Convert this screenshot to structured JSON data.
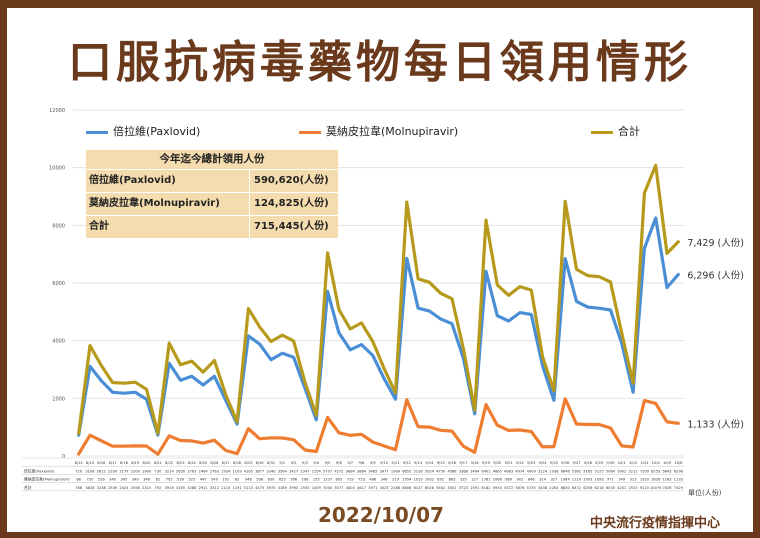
{
  "title": "口服抗病毒藥物每日領用情形",
  "date": "2022/10/07",
  "agency": "中央流行疫情指揮中心",
  "unit_note": "單位(人份)",
  "colors": {
    "frame": "#6b3a1c",
    "paxlovid": "#4a8fd6",
    "molnupiravir": "#ee7d31",
    "total": "#b79a1c",
    "summary_bg": "#f4dcae"
  },
  "summary": {
    "header": "今年迄今總計領用人份",
    "rows": [
      {
        "label": "倍拉維(Paxlovid)",
        "value": "590,620(人份)"
      },
      {
        "label": "莫納皮拉韋(Molnupiravir)",
        "value": "124,825(人份)"
      },
      {
        "label": "合計",
        "value": "715,445(人份)"
      }
    ]
  },
  "end_labels": {
    "total": "7,429 (人份)",
    "paxlovid": "6,296 (人份)",
    "molnupiravir": "1,133 (人份)"
  },
  "table_row_labels": [
    "倍拉維(Paxlovid)",
    "莫納皮拉韋(Molnupiravir)",
    "合計"
  ],
  "chart_data": {
    "type": "line",
    "title": "口服抗病毒藥物每日領用情形",
    "xlabel": "",
    "ylabel": "",
    "ylim": [
      0,
      12000
    ],
    "yticks": [
      "12000",
      "10000",
      "8000",
      "6000",
      "4000",
      "2000",
      "0"
    ],
    "grid": true,
    "legend_position": "top-left",
    "categories": [
      "8/14",
      "8/15",
      "8/16",
      "8/17",
      "8/18",
      "8/19",
      "8/20",
      "8/21",
      "8/22",
      "8/23",
      "8/24",
      "8/25",
      "8/26",
      "8/27",
      "8/28",
      "8/29",
      "8/30",
      "8/31",
      "9/1",
      "9/2",
      "9/3",
      "9/4",
      "9/5",
      "9/6",
      "9/7",
      "9/8",
      "9/9",
      "9/10",
      "9/11",
      "9/12",
      "9/13",
      "9/14",
      "9/15",
      "9/16",
      "9/17",
      "9/18",
      "9/19",
      "9/20",
      "9/21",
      "9/22",
      "9/23",
      "9/24",
      "9/25",
      "9/26",
      "9/27",
      "9/28",
      "9/29",
      "9/30",
      "10/1",
      "10/2",
      "10/3",
      "10/4",
      "10/5",
      "10/6"
    ],
    "series": [
      {
        "name": "倍拉維(Paxlovid)",
        "values": [
          720,
          3108,
          2612,
          2209,
          2179,
          2209,
          1969,
          730,
          3214,
          2626,
          2763,
          2464,
          2763,
          1924,
          1109,
          4165,
          3877,
          3340,
          3564,
          3427,
          2347,
          1254,
          5707,
          4272,
          3684,
          3864,
          3485,
          2677,
          1969,
          6852,
          5128,
          5024,
          4750,
          4588,
          3388,
          1464,
          6401,
          4865,
          4683,
          4974,
          4909,
          3124,
          1936,
          6846,
          5362,
          5165,
          5125,
          5064,
          3902,
          2212,
          7200,
          8253,
          5843,
          6296
        ]
      },
      {
        "name": "莫納皮拉韋(Molnupiravir)",
        "values": [
          68,
          720,
          526,
          340,
          345,
          349,
          346,
          62,
          702,
          539,
          525,
          447,
          549,
          191,
          82,
          948,
          598,
          630,
          625,
          566,
          208,
          155,
          1337,
          805,
          719,
          753,
          486,
          348,
          219,
          1954,
          1019,
          1002,
          892,
          863,
          335,
          127,
          1781,
          1068,
          889,
          902,
          846,
          314,
          327,
          1984,
          1110,
          1093,
          1093,
          971,
          349,
          313,
          1920,
          1826,
          1183,
          1133
        ]
      },
      {
        "name": "合計",
        "values": [
          788,
          3828,
          3138,
          2549,
          2524,
          2558,
          2315,
          792,
          3916,
          3165,
          3288,
          2911,
          3312,
          2115,
          1191,
          5113,
          4475,
          3970,
          4189,
          3993,
          2555,
          1409,
          7044,
          5077,
          4403,
          4617,
          3971,
          3025,
          2188,
          8806,
          6147,
          6026,
          5642,
          5451,
          3723,
          1591,
          8182,
          5933,
          5572,
          5876,
          5755,
          3438,
          2263,
          8830,
          6472,
          6258,
          6218,
          6035,
          4251,
          2525,
          9120,
          10079,
          7026,
          7429
        ]
      }
    ]
  }
}
